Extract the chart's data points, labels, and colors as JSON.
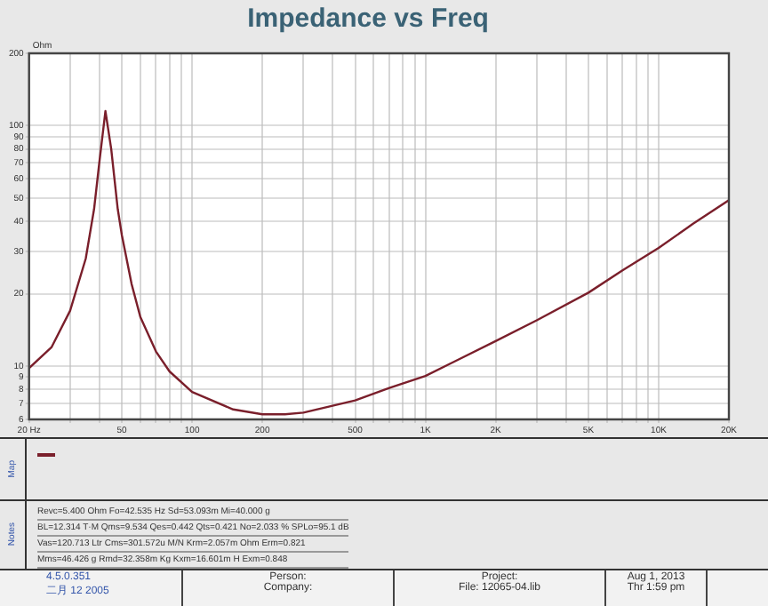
{
  "chart_data": {
    "type": "line",
    "title": "Impedance vs Freq",
    "ylabel": "Ohm",
    "x": [
      20,
      25,
      30,
      35,
      38,
      40,
      42.5,
      45,
      48,
      50,
      55,
      60,
      70,
      80,
      100,
      150,
      200,
      250,
      300,
      500,
      700,
      1000,
      2000,
      3000,
      5000,
      7000,
      10000,
      14000,
      20000
    ],
    "series": [
      {
        "color": "#7a1f2b",
        "values": [
          9.8,
          12,
          17,
          28,
          45,
          70,
          115,
          80,
          45,
          35,
          22,
          16,
          11.5,
          9.5,
          7.8,
          6.6,
          6.3,
          6.3,
          6.4,
          7.2,
          8.1,
          9.1,
          12.7,
          15.5,
          20.2,
          25,
          31,
          39,
          49
        ]
      }
    ],
    "log": "xy",
    "xlim": [
      20,
      20000
    ],
    "ylim": [
      6,
      200
    ],
    "xticks": [
      {
        "value": 20,
        "label": "20 Hz"
      },
      {
        "value": 30,
        "label": null
      },
      {
        "value": 40,
        "label": null
      },
      50,
      {
        "value": 60,
        "label": null
      },
      {
        "value": 70,
        "label": null
      },
      {
        "value": 80,
        "label": null
      },
      {
        "value": 90,
        "label": null
      },
      100,
      200,
      {
        "value": 300,
        "label": null
      },
      {
        "value": 400,
        "label": null
      },
      500,
      {
        "value": 600,
        "label": null
      },
      {
        "value": 700,
        "label": null
      },
      {
        "value": 800,
        "label": null
      },
      {
        "value": 900,
        "label": null
      },
      {
        "value": 1000,
        "label": "1K"
      },
      {
        "value": 2000,
        "label": "2K"
      },
      {
        "value": 3000,
        "label": null
      },
      {
        "value": 4000,
        "label": null
      },
      {
        "value": 5000,
        "label": "5K"
      },
      {
        "value": 6000,
        "label": null
      },
      {
        "value": 7000,
        "label": null
      },
      {
        "value": 8000,
        "label": null
      },
      {
        "value": 9000,
        "label": null
      },
      {
        "value": 10000,
        "label": "10K"
      },
      {
        "value": 20000,
        "label": "20K"
      }
    ],
    "yticks": [
      6,
      7,
      8,
      9,
      10,
      20,
      30,
      40,
      50,
      60,
      70,
      80,
      90,
      100,
      200
    ],
    "grid": true,
    "marker": "none",
    "line_style": "solid",
    "annotations": [
      "Map",
      "Notes",
      "Revc=5.400 Ohm  Fo=42.535 Hz  Sd=53.093m  Mi=40.000 g",
      "BL=12.314 T·M  Qms=9.534  Qes=0.442  Qts=0.421  No=2.033 %  SPLo=95.1 dB",
      "Vas=120.713 Ltr  Cms=301.572u M/N  Krm=2.057m Ohm  Erm=0.821",
      "Mms=46.426 g  Rmd=32.358m Kg  Kxm=16.601m H  Exm=0.848",
      "4.5.0.351",
      "二月 12 2005",
      "Person:",
      "Company:",
      "Project:",
      "File: 12065-04.lib",
      "Aug 1, 2013",
      "Thr 1:59 pm"
    ]
  }
}
